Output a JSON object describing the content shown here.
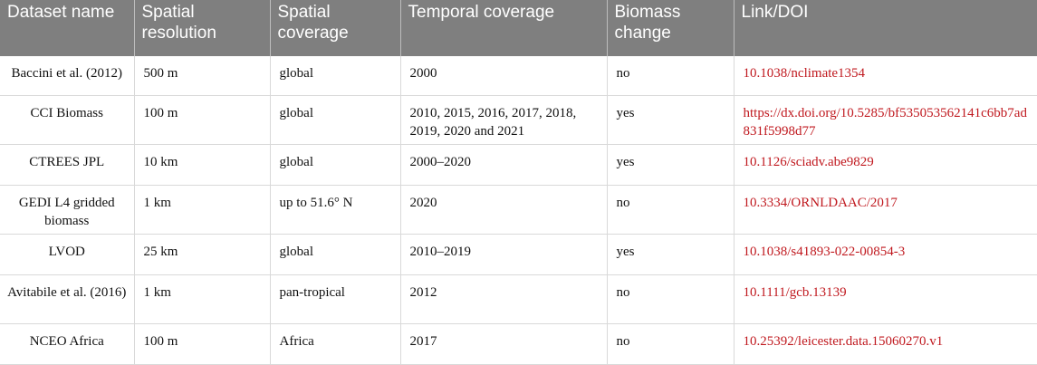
{
  "headers": [
    "Dataset name",
    "Spatial resolution",
    "Spatial coverage",
    "Temporal coverage",
    "Biomass change",
    "Link/DOI"
  ],
  "rows": [
    {
      "name": "Baccini et al. (2012)",
      "resolution": "500 m",
      "coverage": "global",
      "temporal": "2000",
      "change": "no",
      "link": "10.1038/nclimate1354"
    },
    {
      "name": "CCI Biomass",
      "resolution": "100 m",
      "coverage": "global",
      "temporal": "2010, 2015, 2016, 2017, 2018, 2019, 2020 and 2021",
      "change": "yes",
      "link": "https://dx.doi.org/10.5285/bf535053562141c6bb7ad831f5998d77"
    },
    {
      "name": "CTREES JPL",
      "resolution": "10 km",
      "coverage": "global",
      "temporal": "2000–2020",
      "change": "yes",
      "link": "10.1126/sciadv.abe9829"
    },
    {
      "name": "GEDI L4 gridded biomass",
      "resolution": "1 km",
      "coverage": "up to 51.6° N",
      "temporal": "2020",
      "change": "no",
      "link": "10.3334/ORNLDAAC/2017"
    },
    {
      "name": "LVOD",
      "resolution": "25 km",
      "coverage": "global",
      "temporal": "2010–2019",
      "change": "yes",
      "link": "10.1038/s41893-022-00854-3"
    },
    {
      "name": "Avitabile et al. (2016)",
      "resolution": "1 km",
      "coverage": "pan-tropical",
      "temporal": "2012",
      "change": "no",
      "link": "10.1111/gcb.13139"
    },
    {
      "name": "NCEO Africa",
      "resolution": "100 m",
      "coverage": "Africa",
      "temporal": "2017",
      "change": "no",
      "link": "10.25392/leicester.data.15060270.v1"
    }
  ]
}
